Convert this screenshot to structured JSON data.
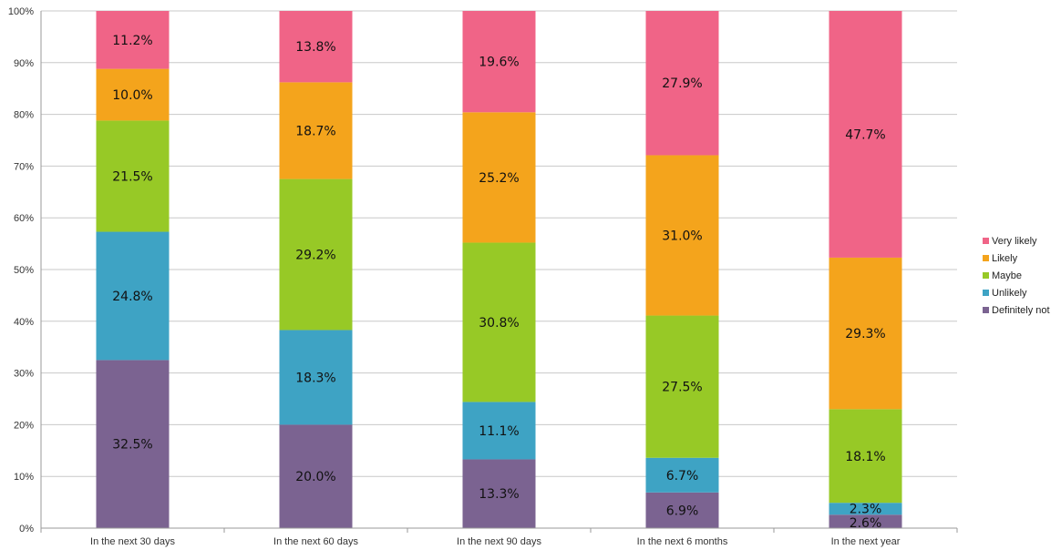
{
  "chart_data": {
    "type": "bar",
    "stacked": true,
    "percent_stacked": true,
    "categories": [
      "In the next 30 days",
      "In the next 60 days",
      "In the next 90 days",
      "In the next 6 months",
      "In the next year"
    ],
    "series": [
      {
        "name": "Definitely not",
        "color": "#7b6391",
        "values": [
          32.5,
          20.0,
          13.3,
          6.9,
          2.6
        ],
        "labels": [
          "32.5%",
          "20.0%",
          "13.3%",
          "6.9%",
          "2.6%"
        ]
      },
      {
        "name": "Unlikely",
        "color": "#3ea3c4",
        "values": [
          24.8,
          18.3,
          11.1,
          6.7,
          2.3
        ],
        "labels": [
          "24.8%",
          "18.3%",
          "11.1%",
          "6.7%",
          "2.3%"
        ]
      },
      {
        "name": "Maybe",
        "color": "#97c926",
        "values": [
          21.5,
          29.2,
          30.8,
          27.5,
          18.1
        ],
        "labels": [
          "21.5%",
          "29.2%",
          "30.8%",
          "27.5%",
          "18.1%"
        ]
      },
      {
        "name": "Likely",
        "color": "#f4a41c",
        "values": [
          10.0,
          18.7,
          25.2,
          31.0,
          29.3
        ],
        "labels": [
          "10.0%",
          "18.7%",
          "25.2%",
          "31.0%",
          "29.3%"
        ]
      },
      {
        "name": "Very likely",
        "color": "#f06487",
        "values": [
          11.2,
          13.8,
          19.6,
          27.9,
          47.7
        ],
        "labels": [
          "11.2%",
          "13.8%",
          "19.6%",
          "27.9%",
          "47.7%"
        ]
      }
    ],
    "y_ticks": [
      "0%",
      "10%",
      "20%",
      "30%",
      "40%",
      "50%",
      "60%",
      "70%",
      "80%",
      "90%",
      "100%"
    ],
    "ylim": [
      0,
      100
    ],
    "grid": true,
    "legend_position": "right",
    "legend_order": [
      "Very likely",
      "Likely",
      "Maybe",
      "Unlikely",
      "Definitely not"
    ]
  }
}
